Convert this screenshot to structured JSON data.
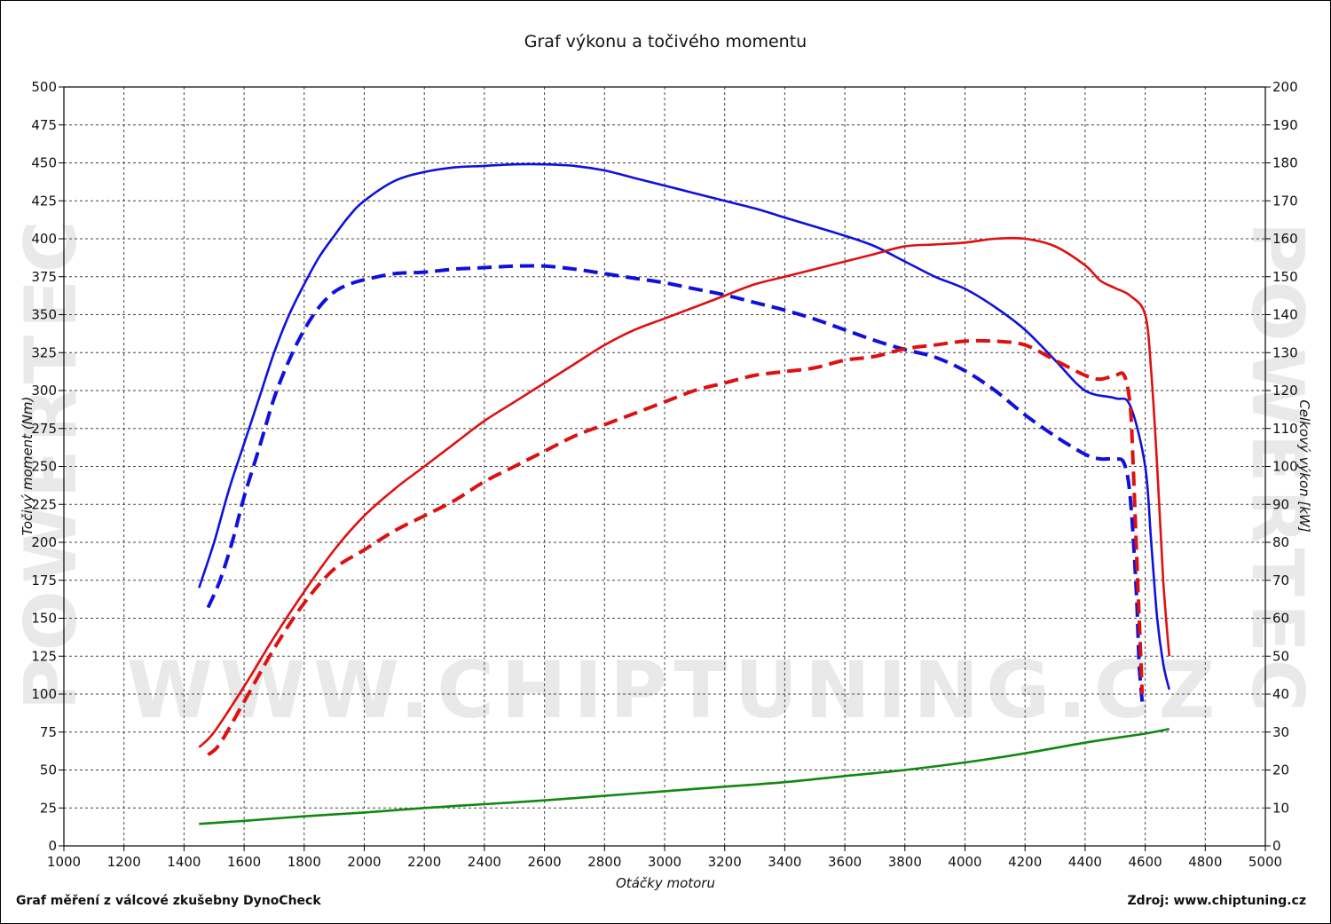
{
  "chart_data": {
    "type": "line",
    "title": "Graf výkonu a točivého momentu",
    "xlabel": "Otáčky motoru",
    "ylabel_left": "Točivý moment (Nm)",
    "ylabel_right": "Celkový výkon [kW]",
    "xlim": [
      1000,
      5000
    ],
    "ylim_left": [
      0,
      500
    ],
    "ylim_right": [
      0,
      200
    ],
    "x_ticks": [
      1000,
      1200,
      1400,
      1600,
      1800,
      2000,
      2200,
      2400,
      2600,
      2800,
      3000,
      3200,
      3400,
      3600,
      3800,
      4000,
      4200,
      4400,
      4600,
      4800,
      5000
    ],
    "y_left_ticks": [
      0,
      25,
      50,
      75,
      100,
      125,
      150,
      175,
      200,
      225,
      250,
      275,
      300,
      325,
      350,
      375,
      400,
      425,
      450,
      475,
      500
    ],
    "y_right_ticks": [
      0,
      10,
      20,
      30,
      40,
      50,
      60,
      70,
      80,
      90,
      100,
      110,
      120,
      130,
      140,
      150,
      160,
      170,
      180,
      190,
      200
    ],
    "grid": true,
    "series": [
      {
        "color": "#1010dd",
        "dash": false,
        "axis": "left",
        "x": [
          1450,
          1500,
          1550,
          1600,
          1650,
          1700,
          1750,
          1800,
          1850,
          1900,
          1950,
          2000,
          2100,
          2200,
          2300,
          2400,
          2500,
          2600,
          2700,
          2800,
          2900,
          3000,
          3100,
          3200,
          3300,
          3400,
          3500,
          3600,
          3700,
          3800,
          3900,
          4000,
          4100,
          4200,
          4300,
          4400,
          4500,
          4550,
          4600,
          4620,
          4640,
          4660,
          4680
        ],
        "y": [
          170,
          200,
          235,
          265,
          295,
          325,
          350,
          370,
          388,
          402,
          415,
          425,
          438,
          444,
          447,
          448,
          449,
          449,
          448,
          445,
          440,
          435,
          430,
          425,
          420,
          414,
          408,
          402,
          395,
          385,
          375,
          367,
          355,
          340,
          320,
          300,
          295,
          290,
          250,
          200,
          150,
          120,
          103
        ]
      },
      {
        "color": "#1010dd",
        "dash": true,
        "axis": "left",
        "x": [
          1480,
          1520,
          1560,
          1600,
          1650,
          1700,
          1750,
          1800,
          1850,
          1900,
          1950,
          2000,
          2100,
          2200,
          2300,
          2400,
          2500,
          2600,
          2700,
          2800,
          2900,
          3000,
          3100,
          3200,
          3300,
          3400,
          3500,
          3600,
          3700,
          3800,
          3900,
          4000,
          4100,
          4200,
          4300,
          4400,
          4450,
          4500,
          4530,
          4550,
          4570,
          4580,
          4590
        ],
        "y": [
          157,
          175,
          200,
          230,
          262,
          295,
          320,
          340,
          355,
          365,
          370,
          373,
          377,
          378,
          380,
          381,
          382,
          382,
          380,
          377,
          374,
          371,
          367,
          363,
          358,
          353,
          347,
          340,
          333,
          327,
          322,
          313,
          300,
          284,
          270,
          258,
          255,
          255,
          252,
          230,
          170,
          120,
          95
        ]
      },
      {
        "color": "#dd1111",
        "dash": false,
        "axis": "right",
        "x": [
          1450,
          1500,
          1600,
          1700,
          1800,
          1900,
          2000,
          2100,
          2200,
          2300,
          2400,
          2500,
          2600,
          2700,
          2800,
          2900,
          3000,
          3100,
          3200,
          3300,
          3400,
          3500,
          3600,
          3700,
          3800,
          3900,
          4000,
          4100,
          4200,
          4300,
          4400,
          4450,
          4500,
          4550,
          4600,
          4620,
          4640,
          4660,
          4680
        ],
        "y": [
          26,
          30,
          42,
          55,
          67,
          78,
          87,
          94,
          100,
          106,
          112,
          117,
          122,
          127,
          132,
          136,
          139,
          142,
          145,
          148,
          150,
          152,
          154,
          156,
          158,
          158.5,
          159,
          160,
          160,
          158,
          153,
          149,
          147,
          145,
          140,
          125,
          100,
          70,
          50
        ]
      },
      {
        "color": "#dd1111",
        "dash": true,
        "axis": "right",
        "x": [
          1480,
          1520,
          1600,
          1700,
          1800,
          1900,
          2000,
          2100,
          2200,
          2300,
          2400,
          2500,
          2600,
          2700,
          2800,
          2900,
          3000,
          3100,
          3200,
          3300,
          3400,
          3500,
          3600,
          3700,
          3800,
          3900,
          4000,
          4100,
          4200,
          4300,
          4400,
          4450,
          4500,
          4530,
          4550,
          4560,
          4570,
          4580,
          4590
        ],
        "y": [
          24,
          27,
          38,
          52,
          64,
          73,
          78,
          83,
          87,
          91,
          96,
          100,
          104,
          108,
          111,
          114,
          117,
          120,
          122,
          124,
          125,
          126,
          128,
          129,
          131,
          132,
          133,
          133,
          132,
          128,
          124,
          123,
          124,
          124,
          116,
          100,
          80,
          60,
          40
        ]
      },
      {
        "color": "#118811",
        "dash": false,
        "axis": "left",
        "x": [
          1450,
          1600,
          1800,
          2000,
          2200,
          2400,
          2600,
          2800,
          3000,
          3200,
          3400,
          3600,
          3800,
          4000,
          4200,
          4400,
          4600,
          4680
        ],
        "y": [
          14.5,
          16.5,
          19.5,
          22,
          25,
          27.5,
          30,
          33,
          36,
          39,
          42,
          46,
          50,
          55,
          61,
          68,
          74,
          77
        ]
      }
    ]
  },
  "footer": {
    "left": "Graf měření z válcové zkušebny DynoCheck",
    "right": "Zdroj: www.chiptuning.cz"
  },
  "watermark": {
    "url": "WWW.CHIPTUNING.CZ",
    "brand": "POWERTEC"
  }
}
